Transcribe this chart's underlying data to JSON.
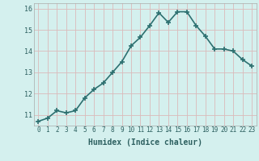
{
  "x": [
    0,
    1,
    2,
    3,
    4,
    5,
    6,
    7,
    8,
    9,
    10,
    11,
    12,
    13,
    14,
    15,
    16,
    17,
    18,
    19,
    20,
    21,
    22,
    23
  ],
  "y": [
    10.7,
    10.85,
    11.2,
    11.1,
    11.2,
    11.8,
    12.2,
    12.5,
    13.0,
    13.5,
    14.25,
    14.65,
    15.2,
    15.8,
    15.35,
    15.85,
    15.85,
    15.2,
    14.7,
    14.1,
    14.1,
    14.0,
    13.6,
    13.3
  ],
  "xlabel": "Humidex (Indice chaleur)",
  "ylim": [
    10.5,
    16.25
  ],
  "xlim": [
    -0.5,
    23.5
  ],
  "line_color": "#2d7070",
  "marker": "+",
  "marker_size": 4,
  "bg_color": "#d4f0ee",
  "grid_color": "#dbbaba",
  "axis_bg": "#d4f0ee",
  "yticks": [
    11,
    12,
    13,
    14,
    15,
    16
  ],
  "xticks": [
    0,
    1,
    2,
    3,
    4,
    5,
    6,
    7,
    8,
    9,
    10,
    11,
    12,
    13,
    14,
    15,
    16,
    17,
    18,
    19,
    20,
    21,
    22,
    23
  ],
  "xlabel_fontsize": 7,
  "tick_fontsize": 5.5,
  "linewidth": 1.2
}
